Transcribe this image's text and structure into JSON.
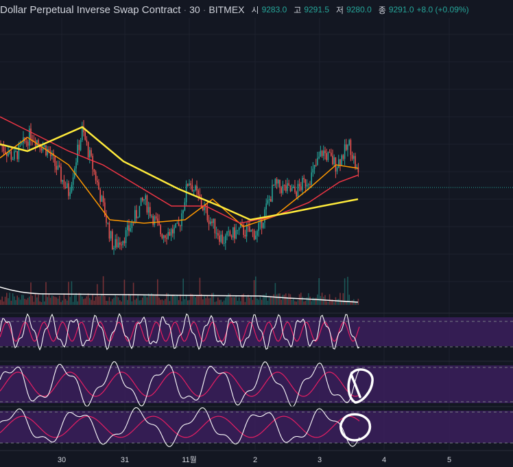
{
  "header": {
    "title": "Dollar Perpetual Inverse Swap Contract",
    "interval": "30",
    "exchange": "BITMEX",
    "open_label": "시",
    "open_value": "9283.0",
    "high_label": "고",
    "high_value": "9291.5",
    "low_label": "저",
    "low_value": "9280.0",
    "close_label": "종",
    "close_value": "9291.0",
    "change": "+8.0 (+0.09%)"
  },
  "colors": {
    "background": "#131722",
    "grid": "#1e222d",
    "up": "#26a69a",
    "down": "#ef5350",
    "ma_fast": "#ff9800",
    "ma_mid": "#f23645",
    "ma_slow": "#ffeb3b",
    "volume_ma": "#ffffff",
    "osc_band": "#3b1f5c",
    "osc_line_a": "#ffffff",
    "osc_line_b": "#e91e63"
  },
  "chart_data": {
    "type": "candlestick",
    "x_tick_labels": [
      "30",
      "31",
      "11월",
      "2",
      "3",
      "4",
      "5"
    ],
    "price_approx_range": [
      9120,
      9400
    ],
    "price_points": [
      {
        "t": 0,
        "p": 9330
      },
      {
        "t": 20,
        "p": 9310
      },
      {
        "t": 45,
        "p": 9345
      },
      {
        "t": 70,
        "p": 9320
      },
      {
        "t": 100,
        "p": 9260
      },
      {
        "t": 120,
        "p": 9350
      },
      {
        "t": 140,
        "p": 9280
      },
      {
        "t": 165,
        "p": 9180
      },
      {
        "t": 185,
        "p": 9200
      },
      {
        "t": 210,
        "p": 9250
      },
      {
        "t": 235,
        "p": 9200
      },
      {
        "t": 260,
        "p": 9205
      },
      {
        "t": 275,
        "p": 9280
      },
      {
        "t": 300,
        "p": 9230
      },
      {
        "t": 325,
        "p": 9190
      },
      {
        "t": 350,
        "p": 9205
      },
      {
        "t": 375,
        "p": 9200
      },
      {
        "t": 400,
        "p": 9270
      },
      {
        "t": 430,
        "p": 9260
      },
      {
        "t": 455,
        "p": 9285
      },
      {
        "t": 470,
        "p": 9320
      },
      {
        "t": 490,
        "p": 9300
      },
      {
        "t": 510,
        "p": 9330
      },
      {
        "t": 522,
        "p": 9285
      }
    ],
    "series": [
      {
        "type": "moving-average",
        "points": [
          [
            0,
            9310
          ],
          [
            40,
            9340
          ],
          [
            100,
            9300
          ],
          [
            160,
            9220
          ],
          [
            210,
            9215
          ],
          [
            270,
            9220
          ],
          [
            310,
            9250
          ],
          [
            355,
            9210
          ],
          [
            400,
            9225
          ],
          [
            450,
            9265
          ],
          [
            490,
            9300
          ],
          [
            522,
            9295
          ]
        ]
      },
      {
        "type": "moving-average",
        "points": [
          [
            0,
            9370
          ],
          [
            40,
            9350
          ],
          [
            100,
            9320
          ],
          [
            150,
            9300
          ],
          [
            200,
            9270
          ],
          [
            250,
            9240
          ],
          [
            300,
            9240
          ],
          [
            350,
            9215
          ],
          [
            400,
            9225
          ],
          [
            450,
            9245
          ],
          [
            495,
            9275
          ],
          [
            522,
            9285
          ]
        ]
      },
      {
        "type": "moving-average",
        "points": [
          [
            0,
            9330
          ],
          [
            40,
            9320
          ],
          [
            120,
            9355
          ],
          [
            180,
            9305
          ],
          [
            260,
            9265
          ],
          [
            320,
            9240
          ],
          [
            365,
            9220
          ],
          [
            420,
            9230
          ],
          [
            470,
            9240
          ],
          [
            522,
            9250
          ]
        ]
      }
    ],
    "oscillators": 3
  }
}
